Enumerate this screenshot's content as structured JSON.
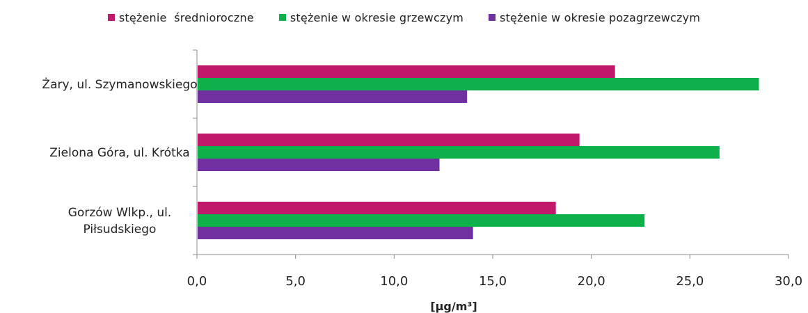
{
  "chart_data": {
    "type": "bar",
    "orientation": "horizontal",
    "categories": [
      "Żary, ul. Szymanowskiego",
      "Zielona Góra, ul. Krótka",
      "Gorzów Wlkp., ul. Piłsudskiego"
    ],
    "series": [
      {
        "name": "stężenie  średnioroczne",
        "color": "#c0186a",
        "values": [
          21.2,
          19.4,
          18.2
        ]
      },
      {
        "name": "stężenie w okresie grzewczym",
        "color": "#0eb04a",
        "values": [
          28.5,
          26.5,
          22.7
        ]
      },
      {
        "name": "stężenie w okresie pozagrzewczym",
        "color": "#7030a0",
        "values": [
          13.7,
          12.3,
          14.0
        ]
      }
    ],
    "xlabel": "[µg/m³]",
    "xlim": [
      0,
      30
    ],
    "xticks": [
      0,
      5,
      10,
      15,
      20,
      25,
      30
    ],
    "xtick_labels": [
      "0,0",
      "5,0",
      "10,0",
      "15,0",
      "20,0",
      "25,0",
      "30,0"
    ],
    "grid": false,
    "legend_position": "top"
  }
}
